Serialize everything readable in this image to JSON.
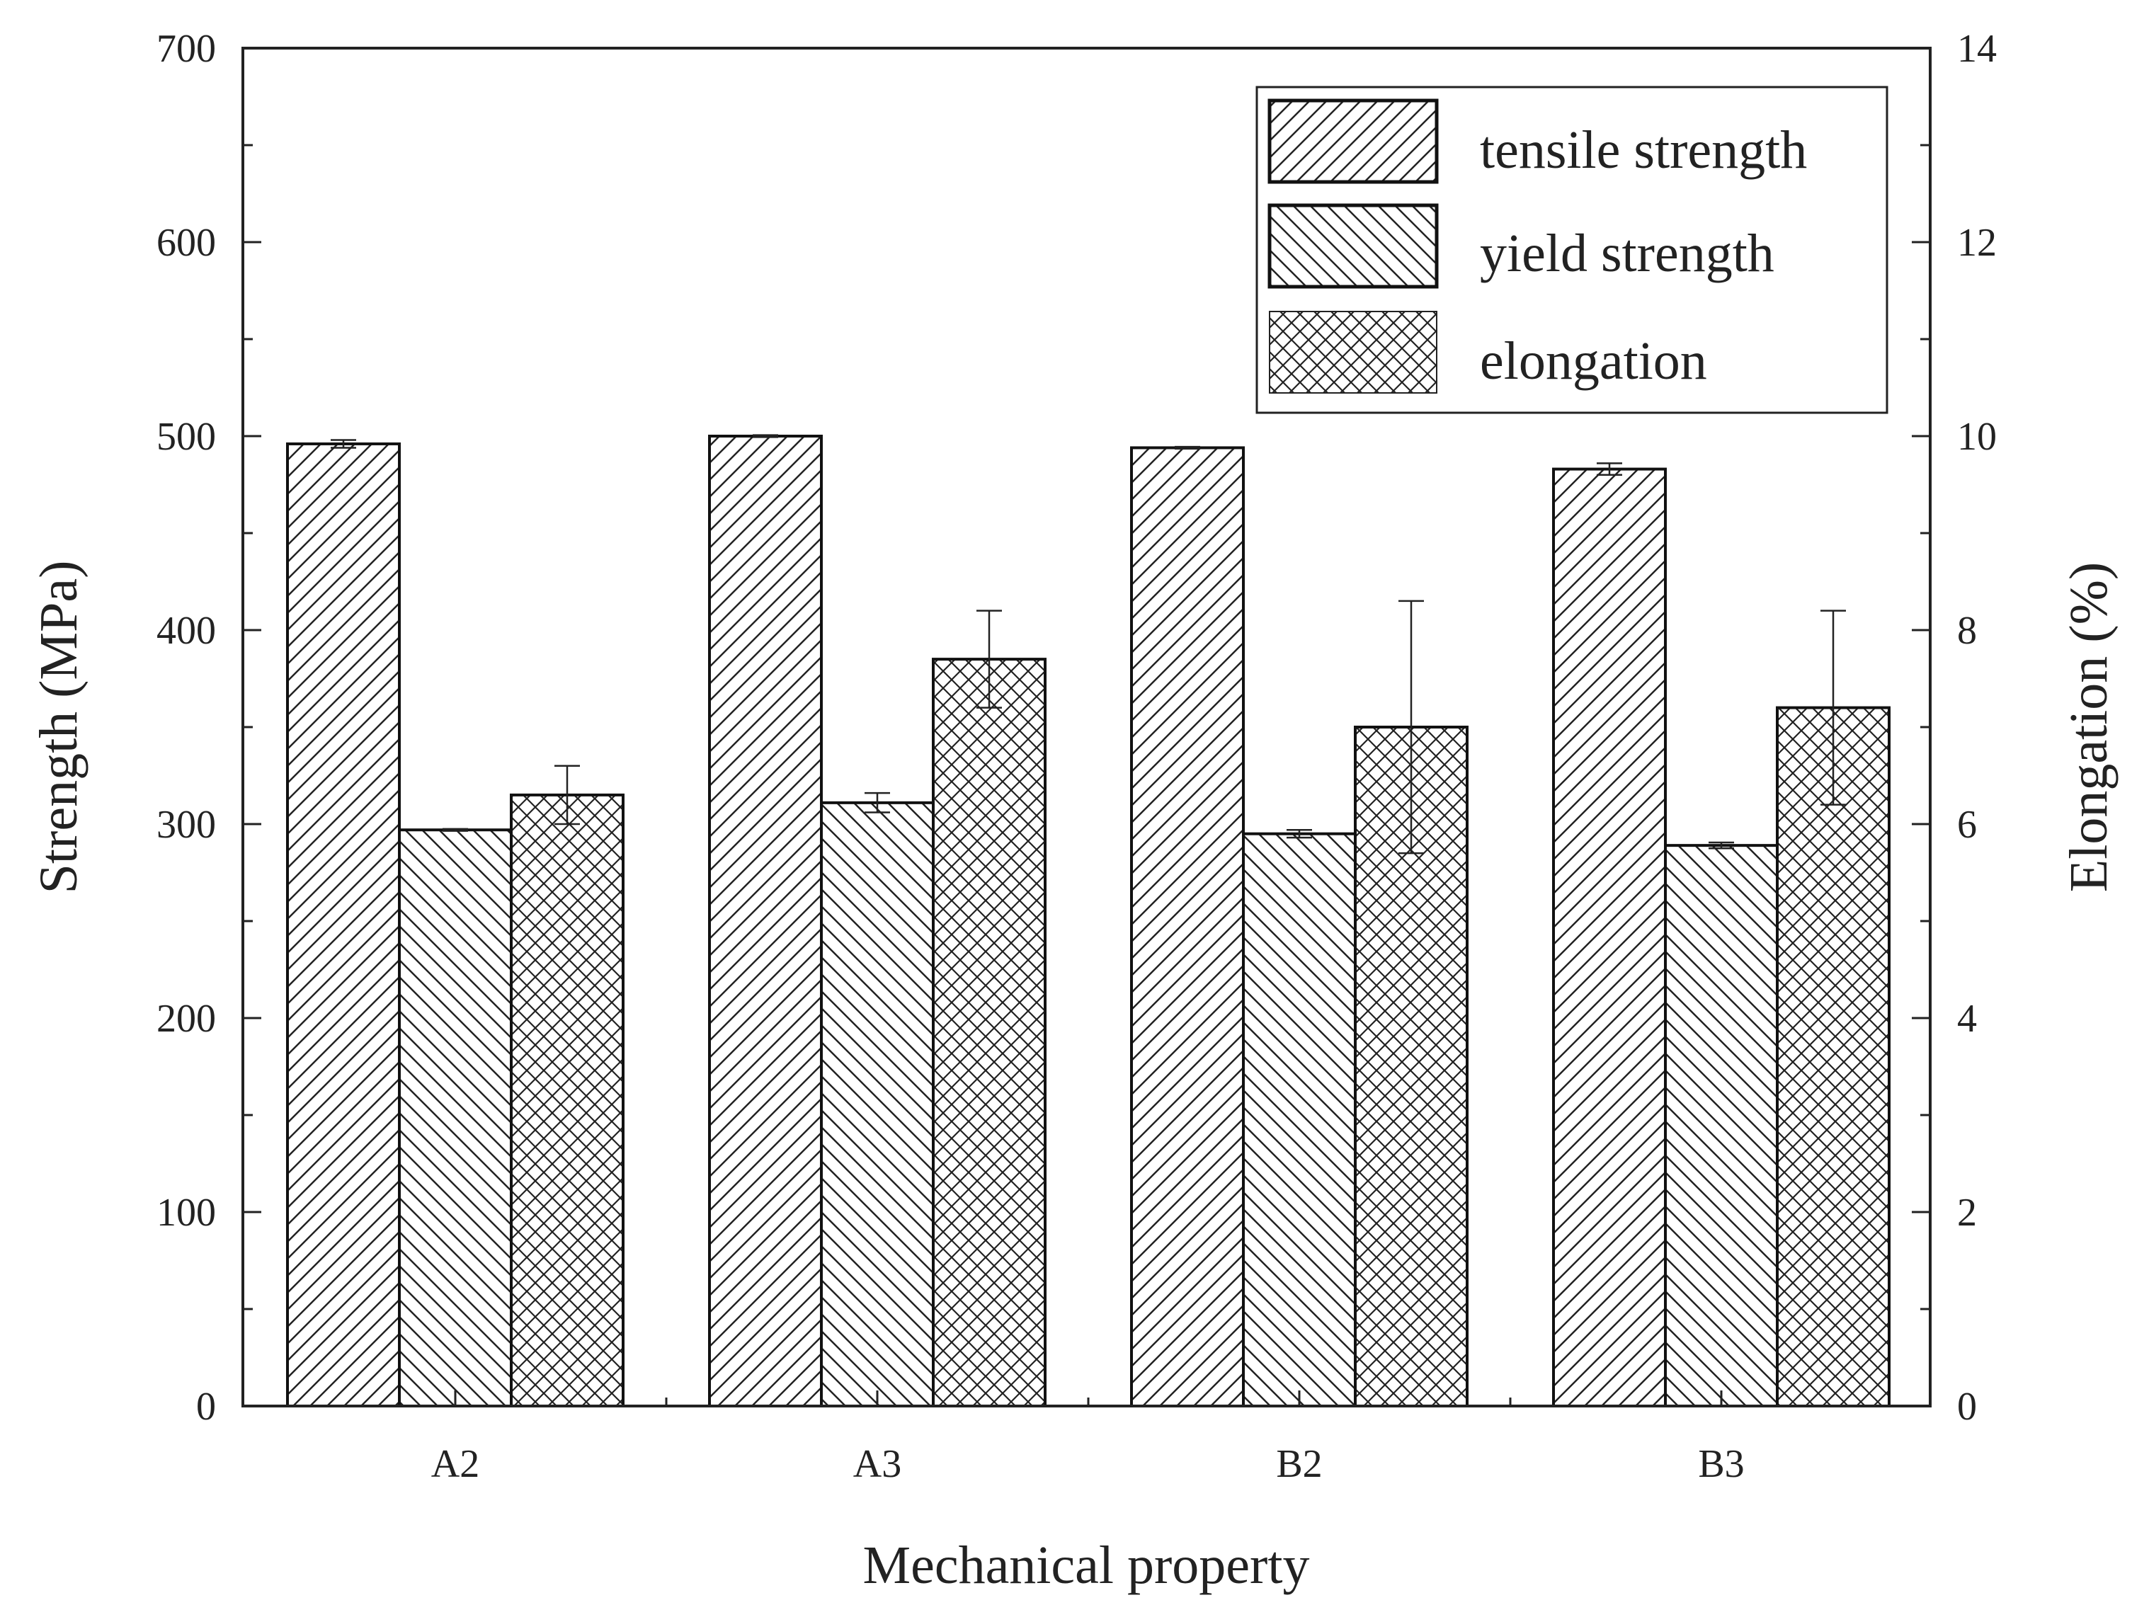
{
  "chart_data": {
    "type": "bar",
    "title": "",
    "xlabel": "Mechanical property",
    "ylabel": "Strength (MPa)",
    "y2label": "Elongation (%)",
    "categories": [
      "A2",
      "A3",
      "B2",
      "B3"
    ],
    "ylim": [
      0,
      700
    ],
    "y2lim": [
      0,
      14
    ],
    "yticks": [
      0,
      100,
      200,
      300,
      400,
      500,
      600,
      700
    ],
    "y2ticks": [
      0,
      2,
      4,
      6,
      8,
      10,
      12,
      14
    ],
    "grid": false,
    "legend_position": "top-right",
    "series": [
      {
        "name": "tensile strength",
        "axis": "left",
        "pattern": "hatch-forward",
        "values": [
          496,
          500,
          494,
          483
        ],
        "errors": [
          2,
          0.5,
          0.5,
          3
        ]
      },
      {
        "name": "yield strength",
        "axis": "left",
        "pattern": "hatch-backward",
        "values": [
          297,
          311,
          295,
          289
        ],
        "errors": [
          0.5,
          5,
          2,
          1.5
        ]
      },
      {
        "name": "elongation",
        "axis": "right",
        "pattern": "crosshatch",
        "values": [
          6.3,
          7.7,
          7.0,
          7.2
        ],
        "errors": [
          0.3,
          0.5,
          1.3,
          1.0
        ]
      }
    ]
  }
}
